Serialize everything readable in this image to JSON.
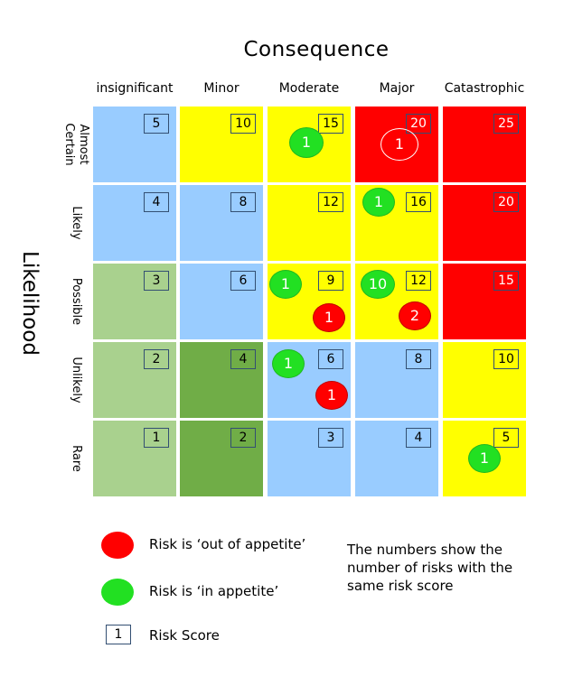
{
  "header": {
    "consequence_title": "Consequence",
    "likelihood_title": "Likelihood"
  },
  "consequence_levels": [
    "insignificant",
    "Minor",
    "Moderate",
    "Major",
    "Catastrophic"
  ],
  "likelihood_levels": [
    "Almost\nCertain",
    "Likely",
    "Possible",
    "Unlikely",
    "Rare"
  ],
  "colors": {
    "blue": "#99ccff",
    "yellow": "#ffff00",
    "red": "#ff0000",
    "light-green": "#a9d18e",
    "dark-green": "#70ad47",
    "in-appetite": "#22e022",
    "out-of-appetite": "#ff0000"
  },
  "matrix": [
    [
      {
        "score": "5",
        "color": "blue"
      },
      {
        "score": "10",
        "color": "yellow"
      },
      {
        "score": "15",
        "color": "yellow"
      },
      {
        "score": "20",
        "color": "red"
      },
      {
        "score": "25",
        "color": "red"
      }
    ],
    [
      {
        "score": "4",
        "color": "blue"
      },
      {
        "score": "8",
        "color": "blue"
      },
      {
        "score": "12",
        "color": "yellow"
      },
      {
        "score": "16",
        "color": "yellow"
      },
      {
        "score": "20",
        "color": "red"
      }
    ],
    [
      {
        "score": "3",
        "color": "light-green"
      },
      {
        "score": "6",
        "color": "blue"
      },
      {
        "score": "9",
        "color": "yellow"
      },
      {
        "score": "12",
        "color": "yellow"
      },
      {
        "score": "15",
        "color": "red"
      }
    ],
    [
      {
        "score": "2",
        "color": "light-green"
      },
      {
        "score": "4",
        "color": "dark-green"
      },
      {
        "score": "6",
        "color": "blue"
      },
      {
        "score": "8",
        "color": "blue"
      },
      {
        "score": "10",
        "color": "yellow"
      }
    ],
    [
      {
        "score": "1",
        "color": "light-green"
      },
      {
        "score": "2",
        "color": "dark-green"
      },
      {
        "score": "3",
        "color": "blue"
      },
      {
        "score": "4",
        "color": "blue"
      },
      {
        "score": "5",
        "color": "yellow"
      }
    ]
  ],
  "risk_counts": [
    {
      "likelihood": "Almost Certain",
      "consequence": "Moderate",
      "count": "1",
      "status": "in-appetite"
    },
    {
      "likelihood": "Almost Certain",
      "consequence": "Major",
      "count": "1",
      "status": "outline"
    },
    {
      "likelihood": "Likely",
      "consequence": "Major",
      "count": "1",
      "status": "in-appetite"
    },
    {
      "likelihood": "Possible",
      "consequence": "Moderate",
      "count": "1",
      "status": "in-appetite"
    },
    {
      "likelihood": "Possible",
      "consequence": "Moderate",
      "count": "1",
      "status": "out-of-appetite"
    },
    {
      "likelihood": "Possible",
      "consequence": "Major",
      "count": "10",
      "status": "in-appetite"
    },
    {
      "likelihood": "Possible",
      "consequence": "Major",
      "count": "2",
      "status": "out-of-appetite"
    },
    {
      "likelihood": "Unlikely",
      "consequence": "Moderate",
      "count": "1",
      "status": "in-appetite"
    },
    {
      "likelihood": "Unlikely",
      "consequence": "Moderate",
      "count": "1",
      "status": "out-of-appetite"
    },
    {
      "likelihood": "Rare",
      "consequence": "Catastrophic",
      "count": "1",
      "status": "in-appetite"
    }
  ],
  "legend": {
    "out_label": "Risk is ‘out of appetite’",
    "in_label": "Risk is ‘in appetite’",
    "score_sample": "1",
    "score_label": "Risk Score",
    "note": "The numbers show the number of risks with the same risk score"
  }
}
